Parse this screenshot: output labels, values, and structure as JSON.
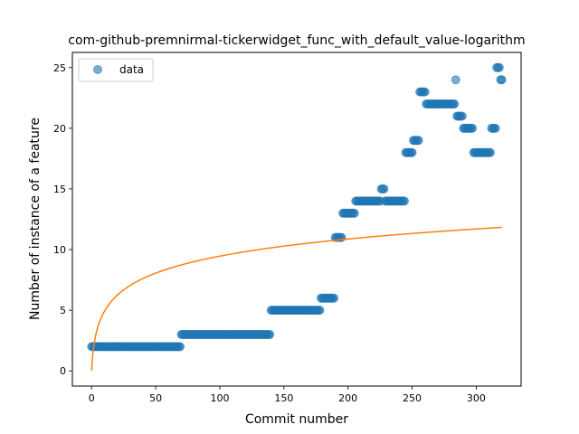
{
  "chart_data": {
    "type": "scatter",
    "title": "com-github-premnirmal-tickerwidget_func_with_default_value-logarithm",
    "xlabel": "Commit number",
    "ylabel": "Number of instance of a feature",
    "xlim": [
      -15,
      335
    ],
    "ylim": [
      -1.25,
      26.25
    ],
    "xticks": [
      0,
      50,
      100,
      150,
      200,
      250,
      300
    ],
    "yticks": [
      0,
      5,
      10,
      15,
      20,
      25
    ],
    "grid": false,
    "legend": {
      "position": "top-left",
      "entries": [
        "data"
      ]
    },
    "colors": {
      "points": "#1f77b4",
      "fit": "#ff7f0e"
    },
    "series": [
      {
        "name": "data",
        "kind": "scatter",
        "segments": [
          {
            "from": 0,
            "to": 69,
            "y": 2
          },
          {
            "from": 70,
            "to": 139,
            "y": 3
          },
          {
            "from": 140,
            "to": 178,
            "y": 5
          },
          {
            "from": 179,
            "to": 189,
            "y": 6
          },
          {
            "from": 190,
            "to": 195,
            "y": 11
          },
          {
            "from": 196,
            "to": 205,
            "y": 13
          },
          {
            "from": 206,
            "to": 225,
            "y": 14
          },
          {
            "from": 226,
            "to": 228,
            "y": 15
          },
          {
            "from": 229,
            "to": 244,
            "y": 14
          },
          {
            "from": 245,
            "to": 250,
            "y": 18
          },
          {
            "from": 251,
            "to": 255,
            "y": 19
          },
          {
            "from": 256,
            "to": 260,
            "y": 23
          },
          {
            "from": 261,
            "to": 283,
            "y": 22
          },
          {
            "from": 284,
            "to": 284,
            "y": 24
          },
          {
            "from": 285,
            "to": 289,
            "y": 21
          },
          {
            "from": 290,
            "to": 297,
            "y": 20
          },
          {
            "from": 298,
            "to": 311,
            "y": 18
          },
          {
            "from": 312,
            "to": 315,
            "y": 20
          },
          {
            "from": 316,
            "to": 318,
            "y": 25
          },
          {
            "from": 319,
            "to": 320,
            "y": 24
          }
        ]
      },
      {
        "name": "",
        "kind": "line",
        "equation": "y = a*ln(x+1)",
        "a": 2.05,
        "x_range": [
          0,
          320
        ]
      }
    ]
  }
}
